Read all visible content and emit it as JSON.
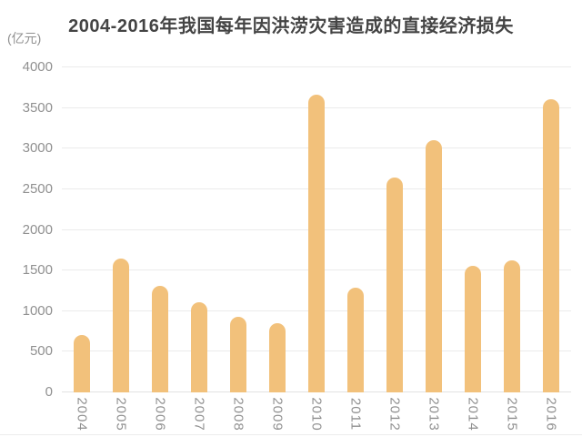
{
  "chart_data": {
    "type": "bar",
    "title": "2004-2016年我国每年因洪涝灾害造成的直接经济损失",
    "xlabel": "",
    "ylabel": "(亿元)",
    "categories": [
      "2004",
      "2005",
      "2006",
      "2007",
      "2008",
      "2009",
      "2010",
      "2011",
      "2012",
      "2013",
      "2014",
      "2015",
      "2016"
    ],
    "values": [
      710,
      1650,
      1310,
      1110,
      930,
      850,
      3660,
      1290,
      2640,
      3100,
      1560,
      1630,
      3610
    ],
    "ylim": [
      0,
      4000
    ],
    "y_ticks": [
      4000,
      3500,
      3000,
      2500,
      2000,
      1500,
      1000,
      500,
      0
    ],
    "grid": "horizontal-only",
    "legend": "none",
    "x_label_rotation_deg": 90,
    "bar_top_style": "rounded"
  },
  "colors": {
    "bar": "#F2C17B",
    "title_text": "#444444",
    "axis_text": "#909090",
    "gridline": "#EBEBEB",
    "axis_line": "#E3E3E3",
    "background": "#FFFFFF"
  }
}
